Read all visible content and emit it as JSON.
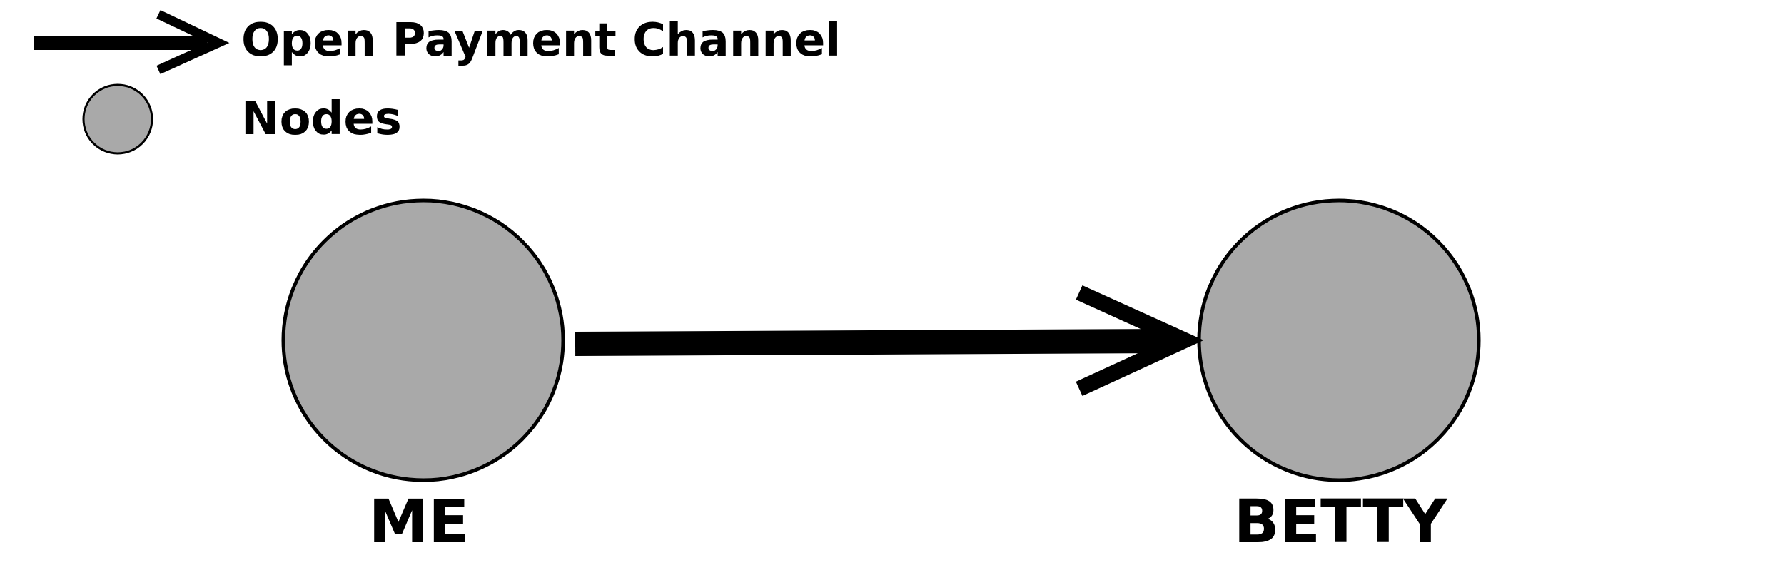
{
  "legend": {
    "items": [
      {
        "icon": "arrow-icon",
        "label": "Open Payment Channel"
      },
      {
        "icon": "node-circle-icon",
        "label": "Nodes"
      }
    ]
  },
  "diagram": {
    "nodes": [
      {
        "id": "me",
        "label": "ME"
      },
      {
        "id": "betty",
        "label": "BETTY"
      }
    ],
    "edges": [
      {
        "from": "me",
        "to": "betty",
        "type": "open-payment-channel"
      }
    ]
  },
  "colors": {
    "node_fill": "#a9a9a9",
    "stroke": "#000000",
    "background": "#ffffff"
  }
}
